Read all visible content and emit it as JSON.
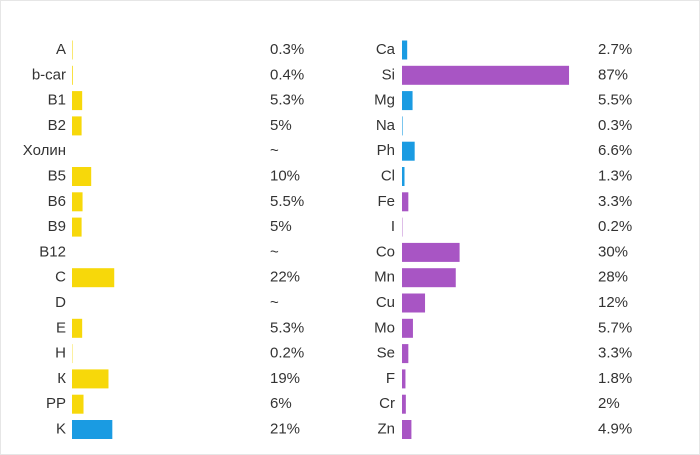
{
  "chart_data": [
    {
      "type": "bar",
      "orientation": "horizontal",
      "xlim": [
        0,
        100
      ],
      "categories": [
        "A",
        "b-car",
        "B1",
        "B2",
        "Холин",
        "B5",
        "B6",
        "B9",
        "B12",
        "C",
        "D",
        "E",
        "H",
        "К",
        "PP",
        "K"
      ],
      "values": [
        0.3,
        0.4,
        5.3,
        5,
        null,
        10,
        5.5,
        5,
        null,
        22,
        null,
        5.3,
        0.2,
        19,
        6,
        21
      ],
      "value_labels": [
        "0.3%",
        "0.4%",
        "5.3%",
        "5%",
        "~",
        "10%",
        "5.5%",
        "5%",
        "~",
        "22%",
        "~",
        "5.3%",
        "0.2%",
        "19%",
        "6%",
        "21%"
      ],
      "colors": [
        "#f7d80a",
        "#f7d80a",
        "#f7d80a",
        "#f7d80a",
        "#f7d80a",
        "#f7d80a",
        "#f7d80a",
        "#f7d80a",
        "#f7d80a",
        "#f7d80a",
        "#f7d80a",
        "#f7d80a",
        "#f7d80a",
        "#f7d80a",
        "#f7d80a",
        "#1a9be2"
      ]
    },
    {
      "type": "bar",
      "orientation": "horizontal",
      "xlim": [
        0,
        100
      ],
      "categories": [
        "Ca",
        "Si",
        "Mg",
        "Na",
        "Ph",
        "Cl",
        "Fe",
        "I",
        "Co",
        "Mn",
        "Cu",
        "Mo",
        "Se",
        "F",
        "Cr",
        "Zn"
      ],
      "values": [
        2.7,
        87,
        5.5,
        0.3,
        6.6,
        1.3,
        3.3,
        0.2,
        30,
        28,
        12,
        5.7,
        3.3,
        1.8,
        2,
        4.9
      ],
      "value_labels": [
        "2.7%",
        "87%",
        "5.5%",
        "0.3%",
        "6.6%",
        "1.3%",
        "3.3%",
        "0.2%",
        "30%",
        "28%",
        "12%",
        "5.7%",
        "3.3%",
        "1.8%",
        "2%",
        "4.9%"
      ],
      "colors": [
        "#1a9be2",
        "#a855c4",
        "#1a9be2",
        "#1a9be2",
        "#1a9be2",
        "#1a9be2",
        "#a855c4",
        "#a855c4",
        "#a855c4",
        "#a855c4",
        "#a855c4",
        "#a855c4",
        "#a855c4",
        "#a855c4",
        "#a855c4",
        "#a855c4"
      ]
    }
  ]
}
